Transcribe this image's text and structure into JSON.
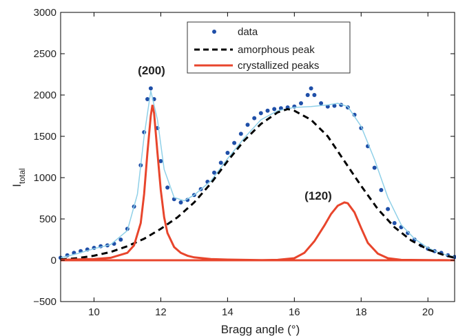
{
  "chart_data": {
    "type": "line",
    "xlabel": "Bragg angle (°)",
    "ylabel": "I",
    "ylabel_sub": "total",
    "xlim": [
      9,
      20.8
    ],
    "ylim": [
      -500,
      3000
    ],
    "xticks": [
      10,
      12,
      14,
      16,
      18,
      20
    ],
    "yticks": [
      -500,
      0,
      500,
      1000,
      1500,
      2000,
      2500,
      3000
    ],
    "xtick_labels": [
      "10",
      "12",
      "14",
      "16",
      "18",
      "20"
    ],
    "ytick_labels": [
      "−500",
      "0",
      "500",
      "1000",
      "1500",
      "2000",
      "2500",
      "3000"
    ],
    "grid": false,
    "legend_position": "top-center",
    "legend": [
      "data",
      "amorphous peak",
      "crystallized peaks"
    ],
    "annotations": [
      {
        "text": "(200)",
        "x": 11.6,
        "y": 2280
      },
      {
        "text": "(120)",
        "x": 17.4,
        "y": 770
      }
    ],
    "colors": {
      "data": "#1f4fa8",
      "fit": "#8fd0e8",
      "amorphous": "#000000",
      "crystalline": "#e8452c"
    },
    "series": [
      {
        "name": "data",
        "style": "markers",
        "x": [
          9.0,
          9.2,
          9.4,
          9.6,
          9.8,
          10.0,
          10.2,
          10.4,
          10.6,
          10.8,
          11.0,
          11.2,
          11.4,
          11.5,
          11.6,
          11.7,
          11.8,
          11.9,
          12.0,
          12.2,
          12.4,
          12.6,
          12.8,
          13.0,
          13.2,
          13.4,
          13.6,
          13.8,
          14.0,
          14.2,
          14.4,
          14.6,
          14.8,
          15.0,
          15.2,
          15.4,
          15.6,
          15.8,
          16.0,
          16.2,
          16.4,
          16.5,
          16.6,
          16.8,
          17.0,
          17.2,
          17.4,
          17.6,
          17.8,
          18.0,
          18.2,
          18.4,
          18.6,
          18.8,
          19.0,
          19.2,
          19.4,
          19.6,
          19.8,
          20.0,
          20.2,
          20.4,
          20.6,
          20.8
        ],
        "y": [
          30,
          60,
          90,
          110,
          130,
          150,
          170,
          180,
          200,
          250,
          380,
          650,
          1150,
          1550,
          1950,
          2080,
          1950,
          1600,
          1200,
          880,
          740,
          700,
          730,
          790,
          860,
          950,
          1060,
          1180,
          1300,
          1420,
          1530,
          1640,
          1720,
          1780,
          1810,
          1830,
          1840,
          1850,
          1860,
          1900,
          2000,
          2080,
          2000,
          1900,
          1860,
          1870,
          1880,
          1850,
          1760,
          1600,
          1380,
          1120,
          850,
          620,
          450,
          400,
          330,
          250,
          180,
          140,
          110,
          90,
          60,
          40
        ]
      },
      {
        "name": "",
        "style": "fit-line",
        "x": [
          9.0,
          9.5,
          10.0,
          10.5,
          11.0,
          11.3,
          11.5,
          11.7,
          11.9,
          12.1,
          12.4,
          12.7,
          13.0,
          13.5,
          14.0,
          14.5,
          15.0,
          15.5,
          16.0,
          16.5,
          17.0,
          17.3,
          17.6,
          18.0,
          18.4,
          18.8,
          19.2,
          19.6,
          20.0,
          20.4,
          20.8
        ],
        "y": [
          30,
          80,
          140,
          190,
          360,
          800,
          1500,
          2050,
          1700,
          1100,
          760,
          720,
          790,
          960,
          1230,
          1480,
          1700,
          1810,
          1850,
          1860,
          1880,
          1900,
          1860,
          1620,
          1220,
          760,
          430,
          260,
          150,
          80,
          40
        ]
      },
      {
        "name": "amorphous peak",
        "style": "dashed",
        "x": [
          9.0,
          9.5,
          10.0,
          10.5,
          11.0,
          11.5,
          12.0,
          12.5,
          13.0,
          13.5,
          14.0,
          14.5,
          15.0,
          15.5,
          15.8,
          16.0,
          16.5,
          17.0,
          17.5,
          18.0,
          18.5,
          19.0,
          19.5,
          20.0,
          20.5,
          20.8
        ],
        "y": [
          10,
          25,
          55,
          100,
          170,
          260,
          380,
          520,
          700,
          930,
          1200,
          1450,
          1650,
          1790,
          1830,
          1810,
          1700,
          1500,
          1200,
          900,
          620,
          400,
          240,
          130,
          60,
          30
        ]
      },
      {
        "name": "crystallized peaks",
        "style": "solid",
        "x": [
          9.0,
          10.0,
          10.5,
          11.0,
          11.2,
          11.4,
          11.5,
          11.6,
          11.7,
          11.75,
          11.8,
          11.9,
          12.0,
          12.1,
          12.2,
          12.4,
          12.6,
          12.8,
          13.0,
          13.5,
          14.0,
          15.0,
          15.5,
          16.0,
          16.3,
          16.6,
          16.9,
          17.1,
          17.3,
          17.5,
          17.6,
          17.8,
          18.0,
          18.2,
          18.5,
          18.8,
          19.2,
          20.8
        ],
        "y": [
          5,
          15,
          30,
          90,
          180,
          450,
          800,
          1300,
          1750,
          1880,
          1780,
          1300,
          850,
          520,
          330,
          160,
          90,
          55,
          35,
          15,
          8,
          2,
          5,
          25,
          90,
          230,
          420,
          560,
          660,
          700,
          690,
          580,
          390,
          210,
          80,
          25,
          5,
          0
        ]
      },
      {
        "name": "",
        "style": "solid",
        "x": [
          9.0,
          20.8
        ],
        "y": [
          0,
          0
        ]
      }
    ]
  }
}
